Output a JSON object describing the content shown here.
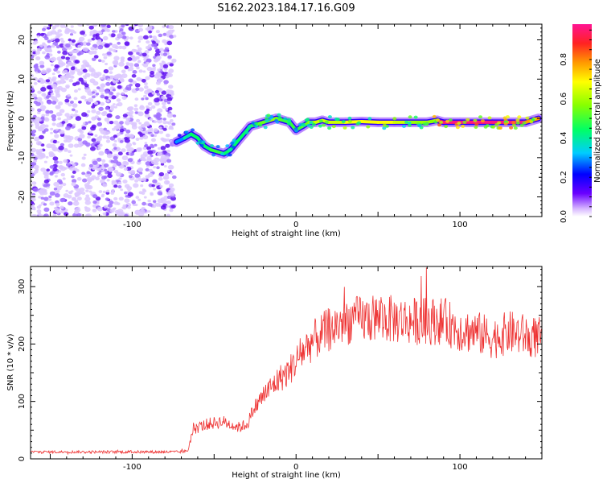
{
  "title": "S162.2023.184.17.16.G09",
  "colorbar": {
    "label": "Normalized spectral amplitude",
    "ticks": [
      "0.0",
      "0.2",
      "0.4",
      "0.6",
      "0.8"
    ],
    "range": [
      0.0,
      0.98
    ]
  },
  "chart_data": [
    {
      "type": "heatmap",
      "xlabel": "Height of straight line (km)",
      "ylabel": "Frequency (Hz)",
      "xlim": [
        -162,
        150
      ],
      "ylim": [
        -25,
        24
      ],
      "x_ticks": [
        "-100",
        "0",
        "100"
      ],
      "y_ticks": [
        "20",
        "10",
        "0",
        "-10",
        "-20"
      ],
      "noise_region_x": [
        -162,
        -74
      ],
      "signal_x": [
        -73,
        -68,
        -64,
        -60,
        -56,
        -52,
        -48,
        -44,
        -40,
        -36,
        -32,
        -28,
        -24,
        -20,
        -16,
        -12,
        -8,
        -4,
        0,
        4,
        8,
        12,
        16,
        20,
        30,
        40,
        50,
        60,
        70,
        80,
        86,
        90,
        100,
        110,
        120,
        130,
        140,
        148
      ],
      "signal_freq": [
        -6,
        -5,
        -4,
        -5,
        -7,
        -8,
        -8.5,
        -9,
        -8,
        -6,
        -4,
        -2,
        -1.5,
        -1,
        -0.5,
        0,
        -0.5,
        -1,
        -3,
        -2,
        -1,
        -1,
        -0.5,
        -1,
        -1,
        -0.8,
        -1,
        -1,
        -1,
        -1,
        -0.5,
        -1,
        -1,
        -1,
        -1,
        -1,
        -1,
        0
      ],
      "signal_amp": [
        0.3,
        0.4,
        0.45,
        0.45,
        0.45,
        0.5,
        0.5,
        0.45,
        0.45,
        0.45,
        0.45,
        0.5,
        0.55,
        0.55,
        0.6,
        0.55,
        0.5,
        0.5,
        0.5,
        0.55,
        0.6,
        0.65,
        0.65,
        0.65,
        0.7,
        0.7,
        0.7,
        0.65,
        0.6,
        0.6,
        0.95,
        0.97,
        0.97,
        0.97,
        0.97,
        0.97,
        0.8,
        0.7
      ]
    },
    {
      "type": "line",
      "xlabel": "Height of straight line (km)",
      "ylabel": "SNR (10 * v/v)",
      "xlim": [
        -162,
        150
      ],
      "ylim": [
        0,
        335
      ],
      "x_ticks": [
        "-100",
        "0",
        "100"
      ],
      "y_ticks": [
        "0",
        "100",
        "200",
        "300"
      ],
      "envelope_x": [
        -162,
        -70,
        -66,
        -63,
        -55,
        -45,
        -35,
        -30,
        -25,
        -20,
        -15,
        -10,
        -5,
        0,
        5,
        10,
        20,
        30,
        50,
        70,
        90,
        100,
        110,
        120,
        130,
        140,
        150
      ],
      "envelope_y": [
        12,
        12,
        14,
        50,
        60,
        65,
        55,
        60,
        90,
        110,
        125,
        140,
        150,
        170,
        190,
        205,
        225,
        240,
        245,
        240,
        240,
        225,
        220,
        210,
        220,
        215,
        210
      ],
      "color": "#ee3333"
    }
  ]
}
